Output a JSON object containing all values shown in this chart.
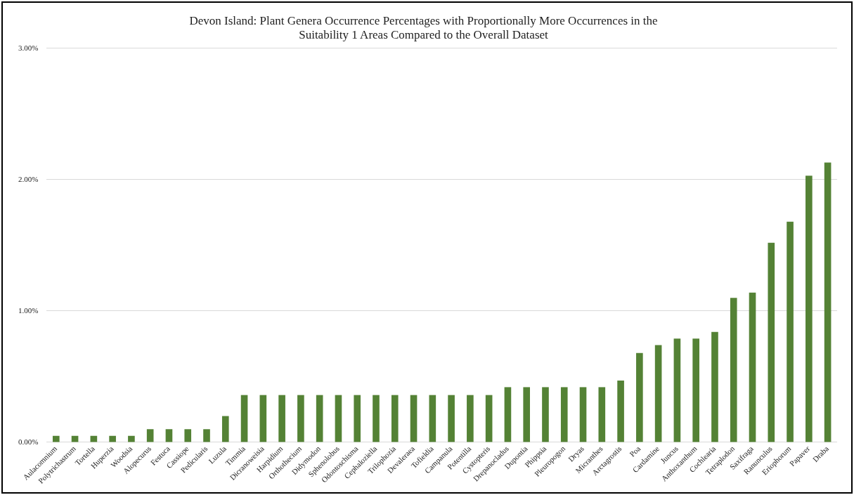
{
  "chart_data": {
    "type": "bar",
    "title": "Devon Island: Plant Genera Occurrence Percentages with Proportionally More Occurrences in the\nSuitability 1 Areas Compared to the Overall Dataset",
    "categories": [
      "Aulacomnium",
      "Polytrichastrum",
      "Tortella",
      "Huperzia",
      "Woodsia",
      "Alopecurus",
      "Festuca",
      "Cassiope",
      "Pedicularis",
      "Luzula",
      "Timmia",
      "Dicranoweisia",
      "Harpidium",
      "Orthothecium",
      "Didymodon",
      "Sphenolobus",
      "Odontoschisma",
      "Cephaloziella",
      "Trilophozia",
      "Devaleraea",
      "Tofieldia",
      "Campanula",
      "Potentilla",
      "Cystopteris",
      "Drepanocladus",
      "Dupontia",
      "Phippsia",
      "Pleuropogon",
      "Dryas",
      "Micranthes",
      "Arctagrostis",
      "Poa",
      "Cardamine",
      "Juncus",
      "Anthoxanthum",
      "Cochlearia",
      "Tetraplodon",
      "Saxifraga",
      "Ranunculus",
      "Eriophorum",
      "Papaver",
      "Draba"
    ],
    "values": [
      0.05,
      0.05,
      0.05,
      0.05,
      0.05,
      0.1,
      0.1,
      0.1,
      0.1,
      0.2,
      0.36,
      0.36,
      0.36,
      0.36,
      0.36,
      0.36,
      0.36,
      0.36,
      0.36,
      0.36,
      0.36,
      0.36,
      0.36,
      0.36,
      0.42,
      0.42,
      0.42,
      0.42,
      0.42,
      0.42,
      0.47,
      0.68,
      0.74,
      0.79,
      0.79,
      0.84,
      1.1,
      1.14,
      1.52,
      1.68,
      2.03,
      2.13
    ],
    "color": "#548235",
    "ylim": [
      0,
      3
    ],
    "yticks": [
      {
        "value": 0,
        "label": "0.00%"
      },
      {
        "value": 1,
        "label": "1.00%"
      },
      {
        "value": 2,
        "label": "2.00%"
      },
      {
        "value": 3,
        "label": "3.00%"
      }
    ],
    "grid": "y"
  }
}
